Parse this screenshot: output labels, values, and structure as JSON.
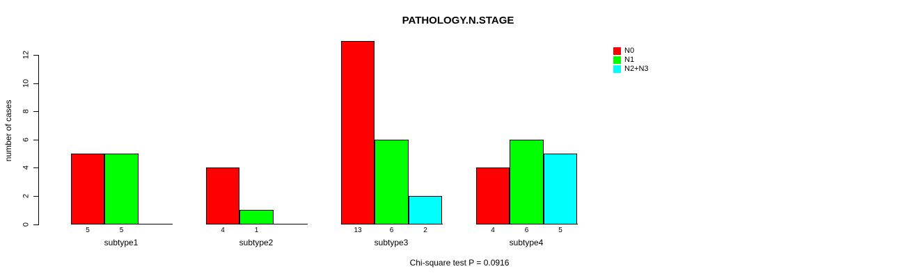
{
  "chart_data": {
    "type": "bar",
    "title": "PATHOLOGY.N.STAGE",
    "ylabel": "number of cases",
    "xlabel": "",
    "categories": [
      "subtype1",
      "subtype2",
      "subtype3",
      "subtype4"
    ],
    "series": [
      {
        "name": "N0",
        "color": "#ff0000",
        "values": [
          5,
          4,
          13,
          4
        ]
      },
      {
        "name": "N1",
        "color": "#00ff00",
        "values": [
          5,
          1,
          6,
          6
        ]
      },
      {
        "name": "N2+N3",
        "color": "#00ffff",
        "values": [
          0,
          0,
          2,
          5
        ]
      }
    ],
    "yticks": [
      0,
      2,
      4,
      6,
      8,
      10,
      12
    ],
    "ylim": [
      0,
      13
    ],
    "grid": false,
    "legend_position": "top-right",
    "bar_value_labels": true,
    "zero_height_bars_hidden": true,
    "annotation": "Chi-square test P = 0.0916"
  }
}
